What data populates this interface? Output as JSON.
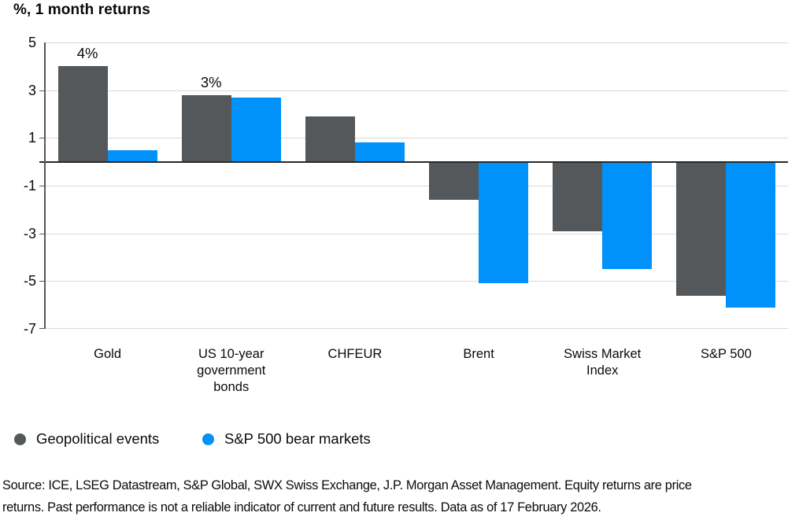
{
  "title": "%, 1 month returns",
  "chart_data": {
    "type": "bar",
    "categories": [
      "Gold",
      "US 10-year\ngovernment\nbonds",
      "CHFEUR",
      "Brent",
      "Swiss Market\nIndex",
      "S&P 500"
    ],
    "series": [
      {
        "name": "Geopolitical events",
        "color": "#54585A",
        "values": [
          4.0,
          2.8,
          1.9,
          -1.6,
          -2.9,
          -5.6
        ]
      },
      {
        "name": "S&P 500 bear markets",
        "color": "#0091FA",
        "values": [
          0.5,
          2.7,
          0.8,
          -5.1,
          -4.5,
          -6.1
        ]
      }
    ],
    "bar_labels": [
      {
        "category_index": 0,
        "series_index": 0,
        "text": "4%"
      },
      {
        "category_index": 1,
        "series_index": 0,
        "text": "3%"
      }
    ],
    "title": "%, 1 month returns",
    "xlabel": "",
    "ylabel": "%, 1 month returns",
    "y_ticks": [
      5,
      3,
      1,
      -1,
      -3,
      -5,
      -7
    ],
    "ylim": [
      -7,
      5
    ],
    "grid": true,
    "zero_line": true,
    "legend_position": "bottom"
  },
  "legend": {
    "items": [
      {
        "label": "Geopolitical events",
        "color": "#54585A"
      },
      {
        "label": "S&P 500 bear markets",
        "color": "#0091FA"
      }
    ]
  },
  "footer": {
    "line1": " Source: ICE, LSEG Datastream, S&P Global, SWX Swiss Exchange, J.P. Morgan Asset Management. Equity returns are price",
    "line2": "returns. Past performance is not a reliable indicator of current and future results. Data as of 17 February 2026."
  },
  "colors": {
    "series_geopolitical": "#54585A",
    "series_bear_markets": "#0091FA",
    "gridline": "#D9D9D9",
    "zero_line": "#26282A",
    "axis_line": "#54585A",
    "background": "#FFFFFF",
    "text": "#0A0A0A"
  }
}
